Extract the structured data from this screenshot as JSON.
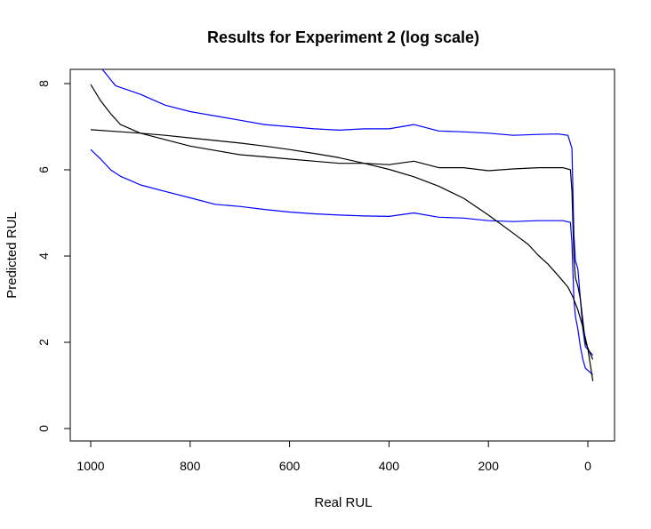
{
  "chart_data": {
    "type": "line",
    "title": "Results for Experiment 2 (log scale)",
    "xlabel": "Real RUL",
    "ylabel": "Predicted RUL",
    "xlim": [
      1000,
      0
    ],
    "ylim": [
      0,
      8.3
    ],
    "x_ticks": [
      1000,
      800,
      600,
      400,
      200,
      0
    ],
    "y_ticks": [
      0,
      2,
      4,
      6,
      8
    ],
    "grid": false,
    "legend": "none",
    "series": [
      {
        "color": "#0000ff",
        "x": [
          978,
          950,
          900,
          850,
          800,
          750,
          700,
          650,
          600,
          550,
          500,
          450,
          400,
          350,
          300,
          250,
          200,
          150,
          100,
          60,
          40,
          32,
          28,
          25,
          20,
          15,
          10,
          5,
          -10
        ],
        "values": [
          8.35,
          7.95,
          7.75,
          7.5,
          7.35,
          7.25,
          7.15,
          7.05,
          7.0,
          6.95,
          6.92,
          6.95,
          6.95,
          7.05,
          6.9,
          6.88,
          6.85,
          6.8,
          6.82,
          6.83,
          6.8,
          6.5,
          4.5,
          3.9,
          3.7,
          3.0,
          2.3,
          1.9,
          1.7
        ]
      },
      {
        "color": "#000000",
        "x": [
          1000,
          980,
          960,
          940,
          920,
          900,
          850,
          800,
          750,
          700,
          650,
          600,
          550,
          500,
          450,
          400,
          350,
          300,
          250,
          200,
          150,
          100,
          50,
          35,
          32,
          28,
          25,
          20,
          15,
          10,
          5,
          -10
        ],
        "values": [
          7.98,
          7.6,
          7.3,
          7.05,
          6.95,
          6.85,
          6.7,
          6.55,
          6.45,
          6.35,
          6.3,
          6.25,
          6.2,
          6.15,
          6.15,
          6.12,
          6.2,
          6.05,
          6.05,
          5.98,
          6.02,
          6.05,
          6.05,
          6.0,
          5.5,
          4.0,
          3.5,
          3.3,
          3.0,
          2.5,
          2.0,
          1.6
        ]
      },
      {
        "color": "#0000ff",
        "x": [
          1000,
          980,
          960,
          940,
          920,
          900,
          850,
          800,
          750,
          700,
          650,
          600,
          550,
          500,
          450,
          400,
          350,
          300,
          250,
          200,
          150,
          100,
          50,
          35,
          32,
          28,
          25,
          20,
          15,
          10,
          5,
          -10
        ],
        "values": [
          6.47,
          6.25,
          6.0,
          5.85,
          5.75,
          5.65,
          5.5,
          5.35,
          5.2,
          5.15,
          5.08,
          5.02,
          4.98,
          4.95,
          4.93,
          4.92,
          5.0,
          4.9,
          4.88,
          4.82,
          4.8,
          4.82,
          4.82,
          4.78,
          4.3,
          3.0,
          2.6,
          2.3,
          1.9,
          1.6,
          1.4,
          1.25
        ]
      },
      {
        "color": "#000000",
        "x": [
          1000,
          950,
          900,
          850,
          800,
          750,
          700,
          650,
          600,
          550,
          500,
          450,
          400,
          350,
          300,
          250,
          200,
          150,
          120,
          100,
          80,
          60,
          40,
          30,
          20,
          10,
          0,
          -10
        ],
        "values": [
          6.93,
          6.89,
          6.85,
          6.8,
          6.74,
          6.68,
          6.62,
          6.55,
          6.47,
          6.38,
          6.28,
          6.15,
          6.01,
          5.84,
          5.62,
          5.34,
          4.95,
          4.53,
          4.27,
          4.02,
          3.81,
          3.55,
          3.28,
          3.05,
          2.75,
          2.35,
          1.85,
          1.1
        ]
      }
    ]
  }
}
